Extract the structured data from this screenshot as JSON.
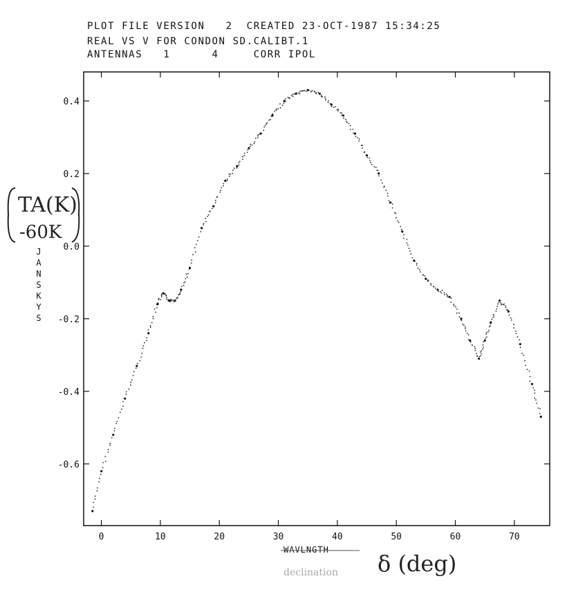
{
  "header": {
    "line1": "PLOT FILE VERSION   2  CREATED 23-OCT-1987 15:34:25",
    "line2": "REAL VS V FOR CONDON SD.CALIBT.1",
    "line3": "ANTENNAS   1      4     CORR IPOL"
  },
  "annotations": {
    "ylabel_handwritten_line1": "TA(K)",
    "ylabel_handwritten_line2": "-60K",
    "xlabel_handwritten": "δ (deg)",
    "xlabel_faint": "declination"
  },
  "chart_data": {
    "type": "scatter",
    "title": "REAL VS V FOR CONDON SD.CALIBT.1",
    "xlabel": "WAVLNGTH",
    "ylabel": "JANSKYS",
    "xlim": [
      -3,
      76
    ],
    "ylim": [
      -0.77,
      0.48
    ],
    "xticks": [
      0,
      10,
      20,
      30,
      40,
      50,
      60,
      70
    ],
    "yticks": [
      0.4,
      0.2,
      0.0,
      -0.2,
      -0.4,
      -0.6
    ],
    "ytick_labels": [
      "0.4",
      "0.2",
      "0.0",
      "-0.2",
      "-0.4",
      "-0.6"
    ],
    "grid": false,
    "series": [
      {
        "x": [
          -1.5,
          0,
          2,
          4,
          6,
          8,
          9.5,
          10.5,
          11.5,
          12.5,
          13.5,
          15,
          17,
          19,
          21,
          23,
          25,
          27,
          29,
          31,
          33,
          35,
          37,
          39,
          41,
          43,
          45,
          47,
          49,
          51,
          53,
          55,
          57,
          59,
          61,
          62.5,
          64,
          65,
          66,
          67.5,
          69,
          71,
          73,
          74.5
        ],
        "y": [
          -0.73,
          -0.62,
          -0.52,
          -0.42,
          -0.33,
          -0.24,
          -0.16,
          -0.13,
          -0.15,
          -0.15,
          -0.12,
          -0.06,
          0.05,
          0.11,
          0.18,
          0.22,
          0.27,
          0.31,
          0.36,
          0.4,
          0.42,
          0.43,
          0.42,
          0.39,
          0.36,
          0.31,
          0.25,
          0.2,
          0.12,
          0.04,
          -0.04,
          -0.09,
          -0.12,
          -0.14,
          -0.2,
          -0.26,
          -0.31,
          -0.26,
          -0.21,
          -0.15,
          -0.18,
          -0.27,
          -0.38,
          -0.47
        ]
      }
    ]
  }
}
